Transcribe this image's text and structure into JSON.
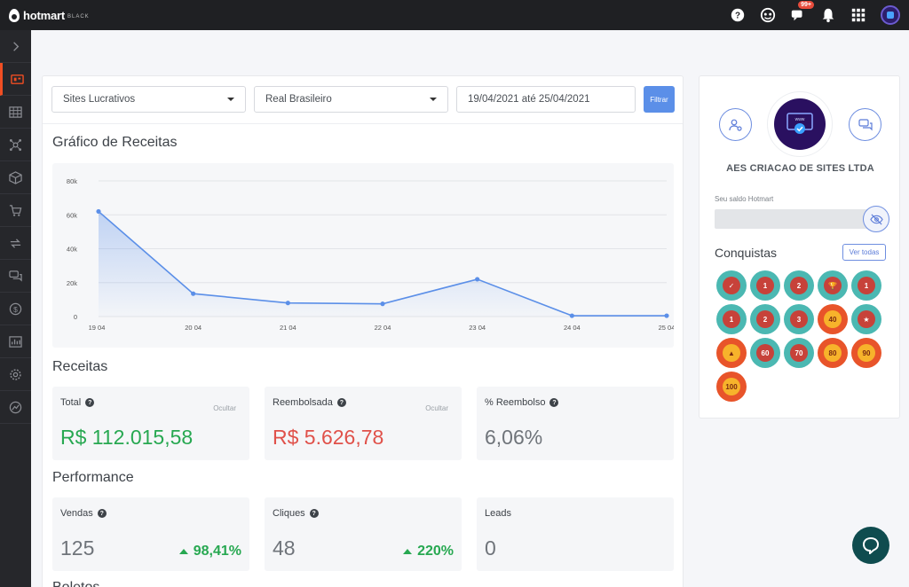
{
  "brand": {
    "name": "hotmart",
    "tier": "BLACK"
  },
  "topbar": {
    "notifications_badge": "99+"
  },
  "filters": {
    "site": "Sites Lucrativos",
    "currency": "Real Brasileiro",
    "date_range": "19/04/2021 até 25/04/2021",
    "filter_button": "Filtrar"
  },
  "revenue_chart": {
    "title": "Gráfico de Receitas",
    "chart_data": {
      "type": "area",
      "categories": [
        "19 04",
        "20 04",
        "21 04",
        "22 04",
        "23 04",
        "24 04",
        "25 04"
      ],
      "y_ticks": [
        "80k",
        "60k",
        "40k",
        "20k",
        "0"
      ],
      "values": [
        62000,
        13500,
        8000,
        7500,
        22000,
        500,
        500
      ],
      "ylim": [
        0,
        80000
      ],
      "grid": true,
      "color": "#5b8fe8"
    }
  },
  "receitas": {
    "title": "Receitas",
    "total": {
      "label": "Total",
      "hide": "Ocultar",
      "value": "R$ 112.015,58"
    },
    "reembolsada": {
      "label": "Reembolsada",
      "hide": "Ocultar",
      "value": "R$ 5.626,78"
    },
    "reembolso_pct": {
      "label": "% Reembolso",
      "value": "6,06%"
    }
  },
  "performance": {
    "title": "Performance",
    "vendas": {
      "label": "Vendas",
      "value": "125",
      "delta": "98,41%"
    },
    "cliques": {
      "label": "Cliques",
      "value": "48",
      "delta": "220%"
    },
    "leads": {
      "label": "Leads",
      "value": "0"
    }
  },
  "next_section_title": "Boletos",
  "profile": {
    "company": "AES CRIACAO DE SITES LTDA",
    "balance_label": "Seu saldo Hotmart",
    "achievements_title": "Conquistas",
    "see_all": "Ver todas",
    "badges": [
      {
        "style": "teal",
        "text": "✓"
      },
      {
        "style": "teal",
        "text": "1"
      },
      {
        "style": "teal",
        "text": "2"
      },
      {
        "style": "teal",
        "text": "🏆"
      },
      {
        "style": "teal",
        "text": "1"
      },
      {
        "style": "teal",
        "text": "1"
      },
      {
        "style": "teal",
        "text": "2"
      },
      {
        "style": "teal",
        "text": "3"
      },
      {
        "style": "orange",
        "text": "40"
      },
      {
        "style": "teal",
        "text": "★"
      },
      {
        "style": "orange",
        "text": "▲"
      },
      {
        "style": "teal",
        "text": "60"
      },
      {
        "style": "teal",
        "text": "70"
      },
      {
        "style": "orange",
        "text": "80"
      },
      {
        "style": "orange",
        "text": "90"
      },
      {
        "style": "orange",
        "text": "100"
      }
    ]
  }
}
